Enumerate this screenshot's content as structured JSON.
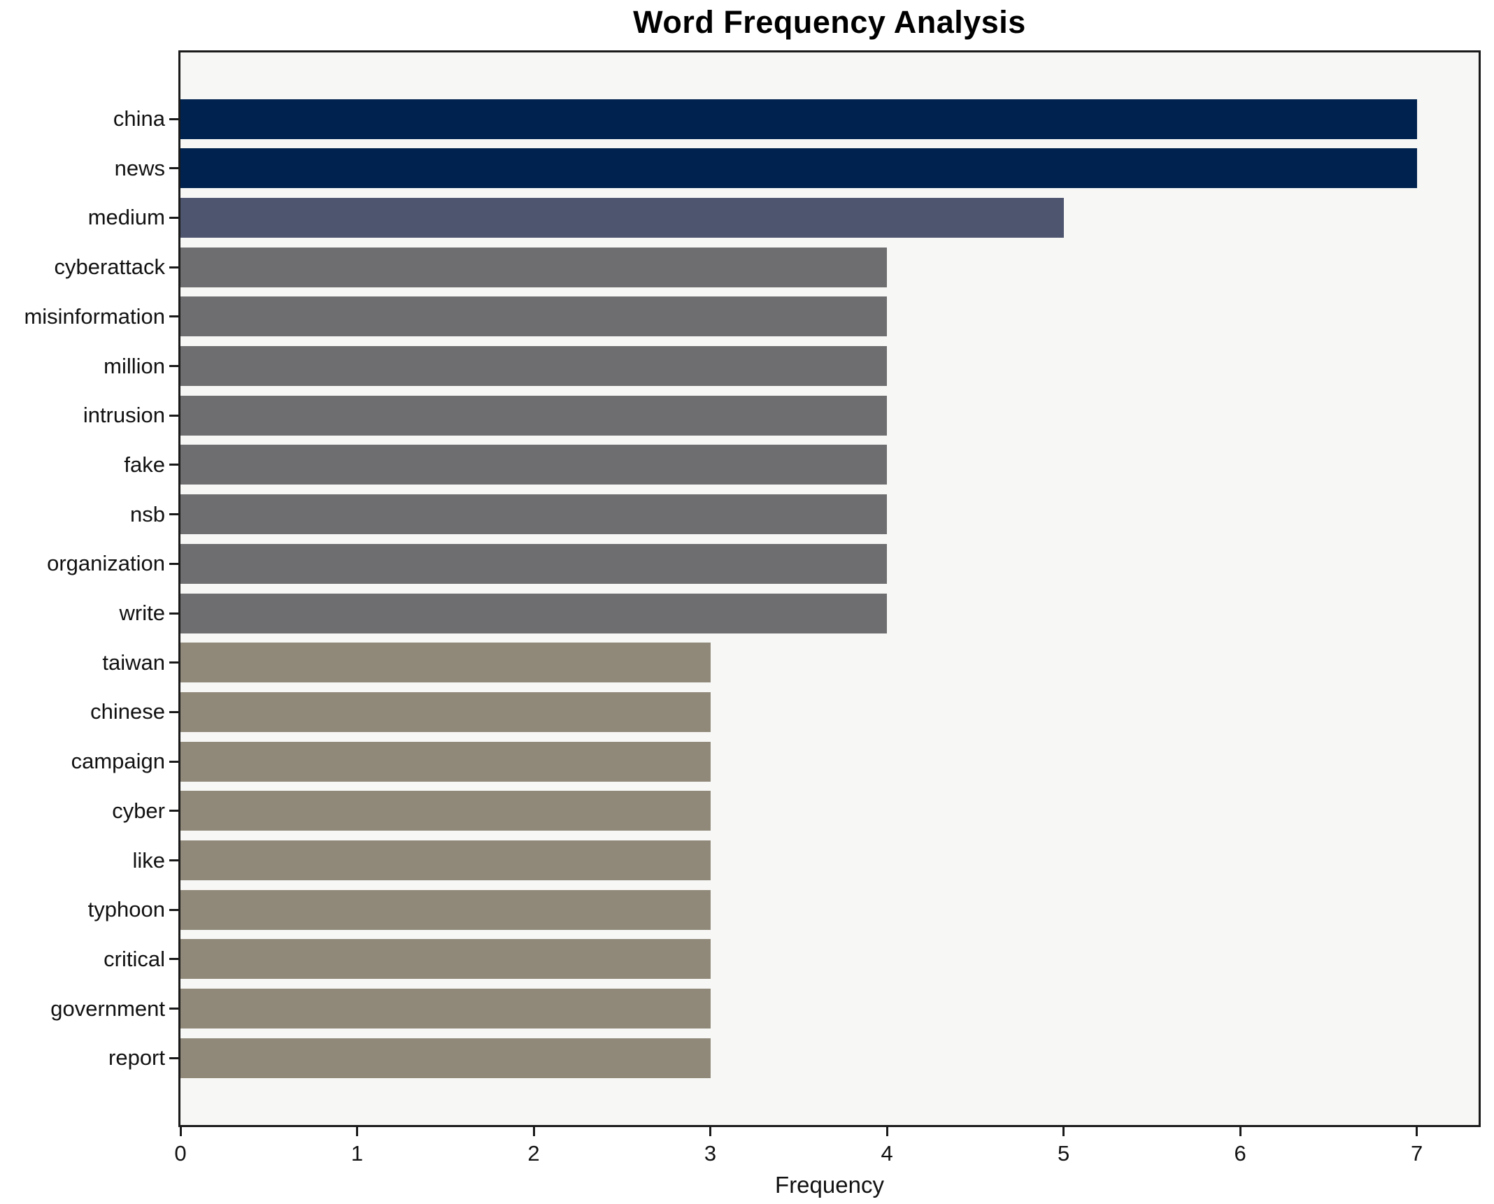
{
  "chart_data": {
    "type": "bar",
    "orientation": "horizontal",
    "title": "Word Frequency Analysis",
    "xlabel": "Frequency",
    "ylabel": "",
    "categories": [
      "china",
      "news",
      "medium",
      "cyberattack",
      "misinformation",
      "million",
      "intrusion",
      "fake",
      "nsb",
      "organization",
      "write",
      "taiwan",
      "chinese",
      "campaign",
      "cyber",
      "like",
      "typhoon",
      "critical",
      "government",
      "report"
    ],
    "values": [
      7,
      7,
      5,
      4,
      4,
      4,
      4,
      4,
      4,
      4,
      4,
      3,
      3,
      3,
      3,
      3,
      3,
      3,
      3,
      3
    ],
    "xticks": [
      "0",
      "1",
      "2",
      "3",
      "4",
      "5",
      "6",
      "7"
    ],
    "xlim": [
      0,
      7.35
    ],
    "grid": false,
    "legend": null,
    "colors": {
      "value_7": "#00224e",
      "value_5": "#4e566f",
      "value_4": "#6e6e70",
      "value_3": "#90897a"
    },
    "plot_background": "#f7f7f5",
    "figure_background": "#ffffff",
    "axis_color": "#1a1a1a",
    "text_color": "#111111"
  }
}
